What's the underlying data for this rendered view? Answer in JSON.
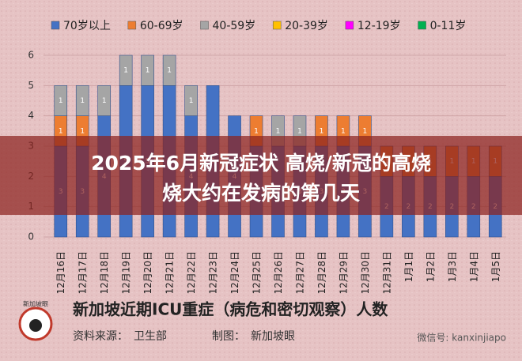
{
  "chart_data": {
    "type": "stacked-bar",
    "title": "新加坡近期ICU重症（病危和密切观察）人数",
    "source": "资料来源：　卫生部",
    "credit": "制图：　新加坡眼",
    "categories": [
      "12月16日",
      "12月17日",
      "12月18日",
      "12月19日",
      "12月20日",
      "12月21日",
      "12月22日",
      "12月23日",
      "12月24日",
      "12月25日",
      "12月26日",
      "12月27日",
      "12月28日",
      "12月29日",
      "12月30日",
      "12月31日",
      "1月1日",
      "1月2日",
      "1月3日",
      "1月4日",
      "1月5日"
    ],
    "series": [
      {
        "name": "70岁以上",
        "color": "#4472c4",
        "values": [
          3,
          3,
          4,
          5,
          5,
          5,
          4,
          5,
          4,
          3,
          3,
          3,
          3,
          3,
          3,
          2,
          2,
          2,
          2,
          2,
          2
        ]
      },
      {
        "name": "60-69岁",
        "color": "#ed7d31",
        "values": [
          1,
          1,
          0,
          0,
          0,
          0,
          0,
          0,
          0,
          1,
          0,
          0,
          1,
          1,
          1,
          1,
          1,
          1,
          1,
          1,
          1
        ]
      },
      {
        "name": "40-59岁",
        "color": "#a5a5a5",
        "values": [
          1,
          1,
          1,
          1,
          1,
          1,
          1,
          0,
          0,
          0,
          1,
          1,
          0,
          0,
          0,
          0,
          0,
          0,
          0,
          0,
          0
        ]
      },
      {
        "name": "20-39岁",
        "color": "#ffc000",
        "values": [
          0,
          0,
          0,
          0,
          0,
          0,
          0,
          0,
          0,
          0,
          0,
          0,
          0,
          0,
          0,
          0,
          0,
          0,
          0,
          0,
          0
        ]
      },
      {
        "name": "12-19岁",
        "color": "#ff00ff",
        "values": [
          0,
          0,
          0,
          0,
          0,
          0,
          0,
          0,
          0,
          0,
          0,
          0,
          0,
          0,
          0,
          0,
          0,
          0,
          0,
          0,
          0
        ]
      },
      {
        "name": "0-11岁",
        "color": "#00b050",
        "values": [
          0,
          0,
          0,
          0,
          0,
          0,
          0,
          0,
          0,
          0,
          0,
          0,
          0,
          0,
          0,
          0,
          0,
          0,
          0,
          0,
          0
        ]
      }
    ],
    "ylim": [
      0,
      6
    ],
    "yticks": [
      0,
      1,
      2,
      3,
      4,
      5,
      6
    ],
    "grid": true,
    "legend": "top"
  },
  "overlay": {
    "line1": "2025年6月新冠症状 高烧/新冠的高烧",
    "line2": "烧大约在发病的第几天"
  },
  "logo": "新加坡眼",
  "watermark": "微信号: kanxinjiapo"
}
